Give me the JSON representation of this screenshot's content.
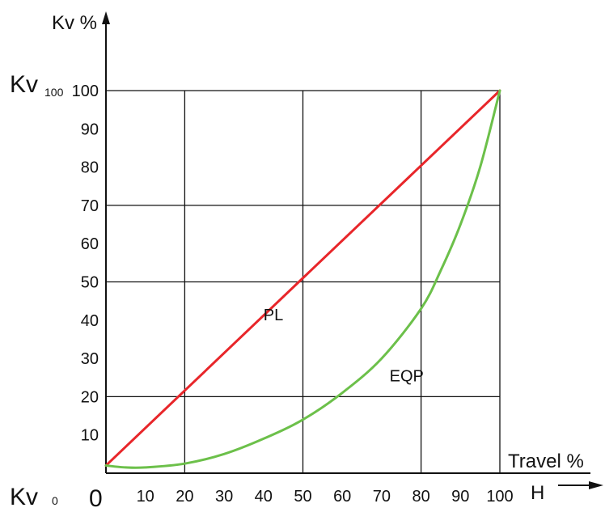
{
  "chart_data": {
    "type": "line",
    "y_axis_title": "Kv %",
    "x_axis_title": "Travel %",
    "x_axis_end_symbol": "H",
    "origin_label": "0",
    "kv100": {
      "main": "Kv",
      "sub": "100"
    },
    "kv0": {
      "main": "Kv",
      "sub": "0"
    },
    "xlim": [
      0,
      100
    ],
    "ylim": [
      0,
      100
    ],
    "x_ticks": [
      10,
      20,
      30,
      40,
      50,
      60,
      70,
      80,
      90,
      100
    ],
    "y_ticks": [
      10,
      20,
      30,
      40,
      50,
      60,
      70,
      80,
      90,
      100
    ],
    "grid_x": [
      20,
      50,
      80,
      100
    ],
    "grid_y": [
      20,
      50,
      70,
      100
    ],
    "series": [
      {
        "name": "PL",
        "color": "#e8262a",
        "x": [
          0,
          100
        ],
        "y": [
          2,
          100
        ]
      },
      {
        "name": "EQP",
        "color": "#6cc04a",
        "x": [
          0,
          5,
          10,
          20,
          30,
          40,
          50,
          60,
          70,
          80,
          85,
          90,
          95,
          100
        ],
        "y": [
          2,
          1.5,
          1.5,
          2.5,
          5,
          9,
          14,
          21,
          30,
          43,
          53,
          65,
          80,
          100
        ]
      }
    ],
    "annotations": [
      {
        "text": "PL",
        "x": 40,
        "y": 40
      },
      {
        "text": "EQP",
        "x": 72,
        "y": 24
      }
    ]
  }
}
